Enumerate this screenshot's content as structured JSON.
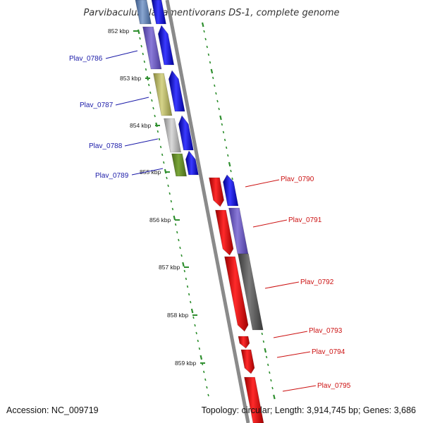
{
  "title": "Parvibaculum lavamentivorans DS-1, complete genome",
  "footer": {
    "accession": "Accession: NC_009719",
    "summary": "Topology: circular; Length: 3,914,745 bp; Genes: 3,686"
  },
  "kbp_marks": [
    "852 kbp",
    "853 kbp",
    "854 kbp",
    "855 kbp",
    "856 kbp",
    "857 kbp",
    "858 kbp",
    "859 kbp"
  ],
  "colors": {
    "backbone": "#8a8a8a",
    "tick": "#2f8f2f",
    "label_forward": "#1a1aa8",
    "label_reverse": "#cc1111"
  },
  "left_labels": [
    "Plav_0786",
    "Plav_0787",
    "Plav_0788",
    "Plav_0789"
  ],
  "right_labels": [
    "Plav_0790",
    "Plav_0791",
    "Plav_0792",
    "Plav_0793",
    "Plav_0794",
    "Plav_0795"
  ]
}
